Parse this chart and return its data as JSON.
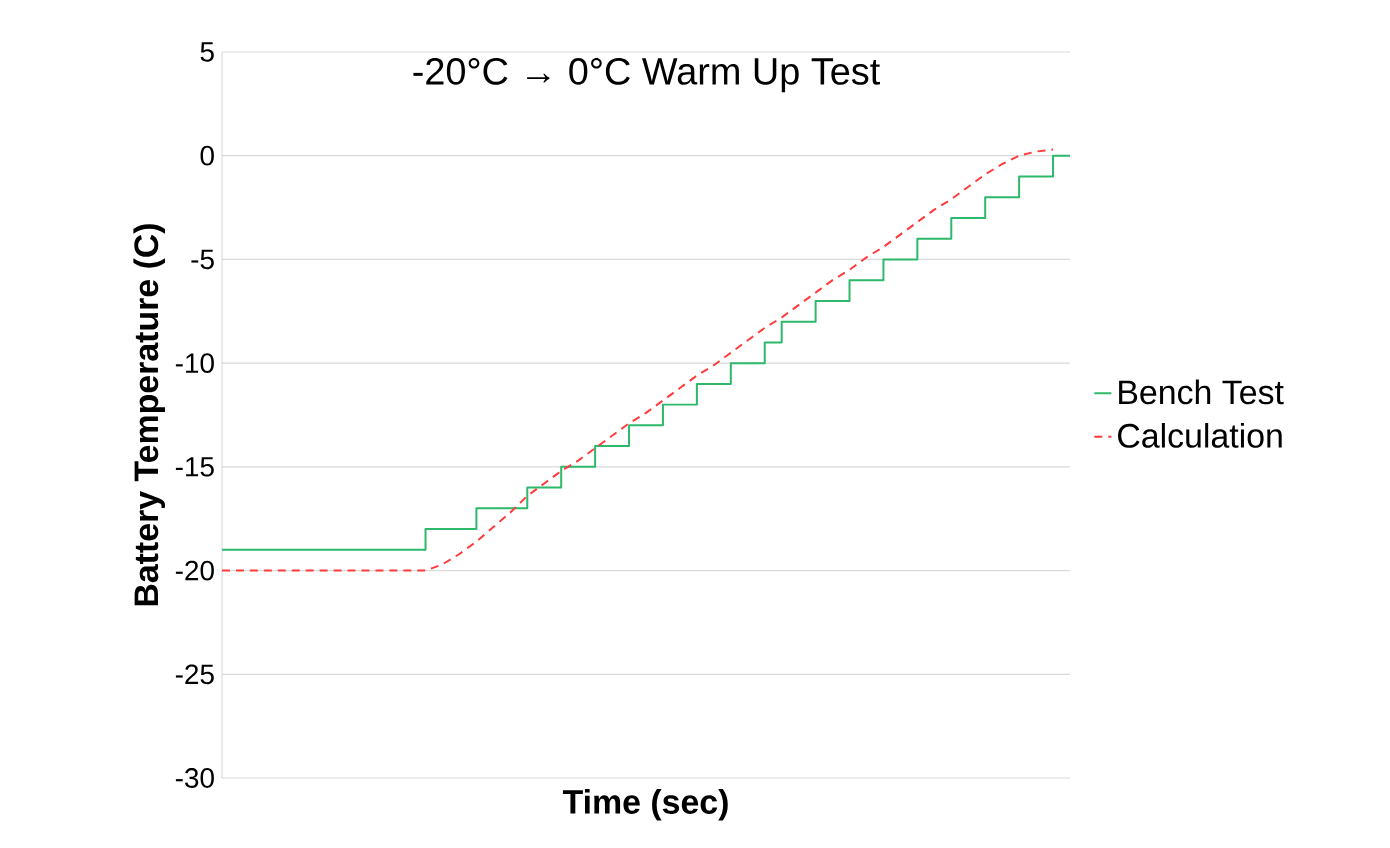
{
  "chart_data": {
    "type": "line",
    "title": "-20°C → 0°C Warm Up Test",
    "xlabel": "Time (sec)",
    "ylabel": "Battery Temperature (C)",
    "categories": [
      null,
      null,
      null,
      null,
      null,
      null,
      null,
      null,
      null,
      null,
      null,
      null,
      null,
      null,
      null,
      null,
      null,
      null,
      null,
      null,
      null,
      null,
      null,
      null,
      null,
      null,
      null,
      null,
      null,
      null,
      null,
      null,
      null,
      null,
      null,
      null,
      null,
      null,
      null,
      null,
      null,
      null,
      null,
      null,
      null,
      null,
      null,
      null,
      null,
      null,
      null
    ],
    "series": [
      {
        "name": "Bench Test",
        "type": "step",
        "color": "#2db86b",
        "line_style": "solid",
        "values": [
          -19,
          -19,
          -19,
          -19,
          -19,
          -19,
          -19,
          -19,
          -19,
          -19,
          -19,
          -19,
          -18,
          -18,
          -18,
          -17,
          -17,
          -17,
          -16,
          -16,
          -15,
          -15,
          -14,
          -14,
          -13,
          -13,
          -12,
          -12,
          -11,
          -11,
          -10,
          -10,
          -9,
          -8,
          -8,
          -7,
          -7,
          -6,
          -6,
          -5,
          -5,
          -4,
          -4,
          -3,
          -3,
          -2,
          -2,
          -1,
          -1,
          0,
          0
        ]
      },
      {
        "name": "Calculation",
        "color": "#ff3b3b",
        "line_style": "dashed",
        "values": [
          -20,
          -20,
          -20,
          -20,
          -20,
          -20,
          -20,
          -20,
          -20,
          -20,
          -20,
          -20,
          -20,
          -19.7,
          -19.2,
          -18.6,
          -17.9,
          -17.2,
          -16.4,
          -15.8,
          -15.2,
          -14.7,
          -14.1,
          -13.5,
          -12.9,
          -12.4,
          -11.8,
          -11.2,
          -10.6,
          -10.1,
          -9.5,
          -8.9,
          -8.3,
          -7.8,
          -7.2,
          -6.6,
          -6.0,
          -5.5,
          -4.9,
          -4.4,
          -3.8,
          -3.2,
          -2.6,
          -2.1,
          -1.5,
          -0.9,
          -0.4,
          0,
          0.2,
          0.3,
          null
        ]
      }
    ],
    "ylim": [
      -30,
      5
    ],
    "yticks": [
      -30,
      -25,
      -20,
      -15,
      -10,
      -5,
      0,
      5
    ],
    "grid": "y",
    "legend": "right",
    "tick_labels": "y"
  }
}
